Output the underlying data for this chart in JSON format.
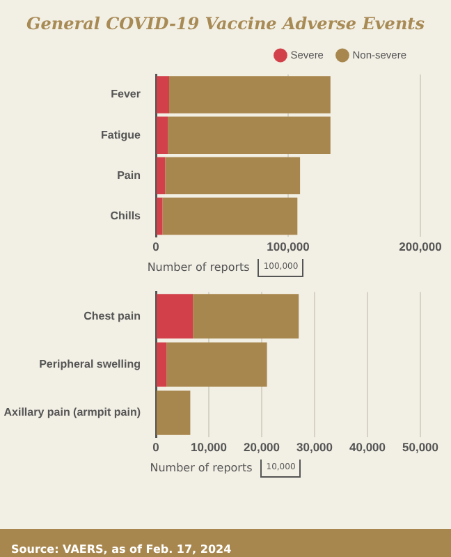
{
  "chart_data": [
    {
      "type": "bar",
      "title": "General COVID-19 Vaccine Adverse Events",
      "orientation": "horizontal",
      "stacked": true,
      "categories": [
        "Fever",
        "Fatigue",
        "Pain",
        "Chills"
      ],
      "series": [
        {
          "name": "Severe",
          "color": "#d2404a",
          "values": [
            10000,
            9000,
            7000,
            5000
          ]
        },
        {
          "name": "Non-severe",
          "color": "#a8874e",
          "values": [
            122000,
            123000,
            102000,
            102000
          ]
        }
      ],
      "xlim": [
        0,
        200000
      ],
      "xticks": [
        0,
        {
          "value": 100000,
          "label": "100,000"
        },
        {
          "value": 200000,
          "label": "200,000"
        }
      ],
      "xlabel": "Number of reports",
      "grid": "x",
      "legend": "top right",
      "annotations": [
        "100,000"
      ]
    },
    {
      "type": "bar",
      "orientation": "horizontal",
      "stacked": true,
      "categories": [
        "Chest pain",
        "Peripheral swelling",
        "Axillary pain (armpit pain)"
      ],
      "series": [
        {
          "color": "#d2404a",
          "values": [
            7000,
            2000,
            0
          ]
        },
        {
          "color": "#a8874e",
          "values": [
            20000,
            19000,
            6500
          ]
        }
      ],
      "xlim": [
        0,
        50000
      ],
      "xticks": [
        0,
        {
          "value": 10000,
          "label": "10,000"
        },
        {
          "value": 20000,
          "label": "20,000"
        },
        {
          "value": 30000,
          "label": "30,000"
        },
        {
          "value": 40000,
          "label": "40,000"
        },
        {
          "value": 50000,
          "label": "50,000"
        }
      ],
      "xlabel": "Number of reports",
      "grid": "x",
      "annotations": [
        "10,000",
        "Source: VAERS, as of Feb. 17, 2024"
      ]
    }
  ]
}
